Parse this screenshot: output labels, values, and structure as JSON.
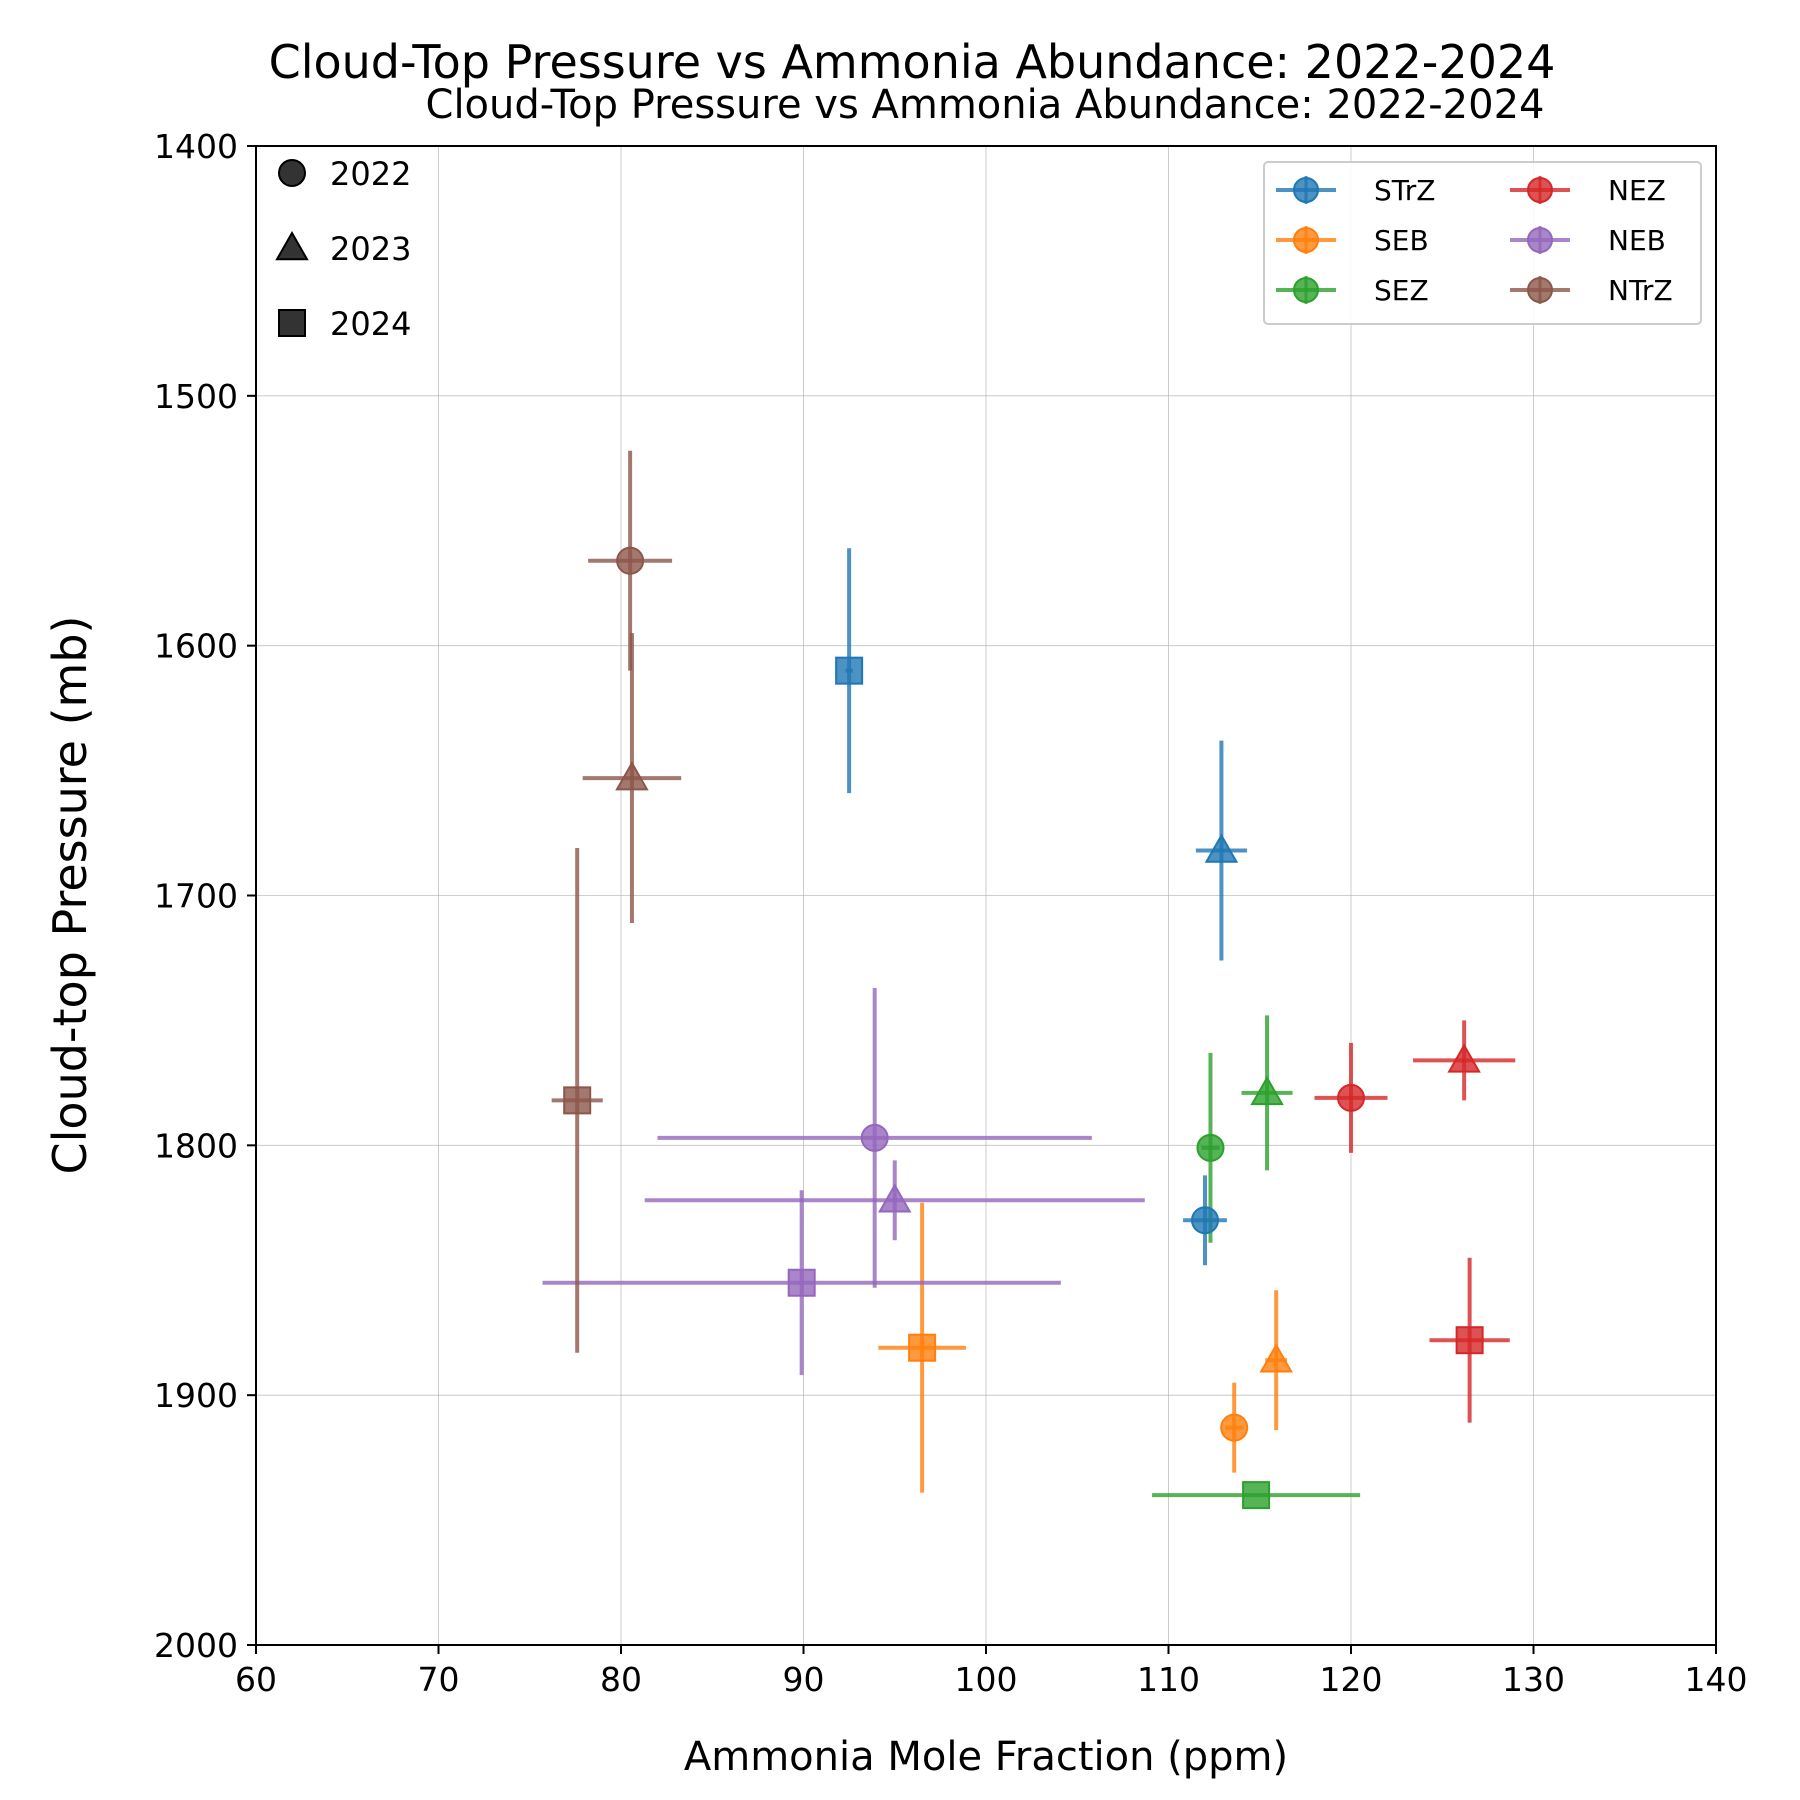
{
  "chart_data": {
    "type": "scatter",
    "title": "Cloud-Top Pressure vs Ammonia Abundance: 2022-2024",
    "subtitle": "Cloud-Top Pressure vs Ammonia Abundance: 2022-2024",
    "xlabel": "Ammonia Mole Fraction (ppm)",
    "ylabel": "Cloud-top Pressure (mb)",
    "xlim": [
      60,
      140
    ],
    "ylim": [
      2000,
      1400
    ],
    "y_inverted": true,
    "grid": true,
    "xticks": [
      "60",
      "70",
      "80",
      "90",
      "100",
      "110",
      "120",
      "130",
      "140"
    ],
    "yticks": [
      "1400",
      "1500",
      "1600",
      "1700",
      "1800",
      "1900",
      "2000"
    ],
    "marker_legend": {
      "placement": "top-left",
      "entries": [
        {
          "label": "2022",
          "marker": "circle"
        },
        {
          "label": "2023",
          "marker": "triangle"
        },
        {
          "label": "2024",
          "marker": "square"
        }
      ]
    },
    "series_legend_placement": "top-right",
    "series": [
      {
        "name": "STrZ",
        "color": "#1f77b4",
        "points": [
          {
            "year": "2022",
            "x": 112.0,
            "y": 1830,
            "xerr": 1.2,
            "yerr": 18
          },
          {
            "year": "2023",
            "x": 112.9,
            "y": 1682,
            "xerr": 1.4,
            "yerr": 44
          },
          {
            "year": "2024",
            "x": 92.5,
            "y": 1610,
            "xerr": 0.2,
            "yerr": 49
          }
        ]
      },
      {
        "name": "SEB",
        "color": "#ff7f0e",
        "points": [
          {
            "year": "2022",
            "x": 113.6,
            "y": 1913,
            "xerr": 0.5,
            "yerr": 18
          },
          {
            "year": "2023",
            "x": 115.9,
            "y": 1886,
            "xerr": 0.6,
            "yerr": 28
          },
          {
            "year": "2024",
            "x": 96.5,
            "y": 1881,
            "xerr": 2.4,
            "yerr": 58
          }
        ]
      },
      {
        "name": "SEZ",
        "color": "#2ca02c",
        "points": [
          {
            "year": "2022",
            "x": 112.3,
            "y": 1801,
            "xerr": 0.5,
            "yerr": 38
          },
          {
            "year": "2023",
            "x": 115.4,
            "y": 1779,
            "xerr": 1.4,
            "yerr": 31
          },
          {
            "year": "2024",
            "x": 114.8,
            "y": 1940,
            "xerr": 5.7,
            "yerr": 0
          }
        ]
      },
      {
        "name": "NEZ",
        "color": "#d62728",
        "points": [
          {
            "year": "2022",
            "x": 120.0,
            "y": 1781,
            "xerr": 2.0,
            "yerr": 22
          },
          {
            "year": "2023",
            "x": 126.2,
            "y": 1766,
            "xerr": 2.8,
            "yerr": 16
          },
          {
            "year": "2024",
            "x": 126.5,
            "y": 1878,
            "xerr": 2.2,
            "yerr": 33
          }
        ]
      },
      {
        "name": "NEB",
        "color": "#9467bd",
        "points": [
          {
            "year": "2022",
            "x": 93.9,
            "y": 1797,
            "xerr": 11.9,
            "yerr": 60
          },
          {
            "year": "2023",
            "x": 95.0,
            "y": 1822,
            "xerr": 13.7,
            "yerr": 16
          },
          {
            "year": "2024",
            "x": 89.9,
            "y": 1855,
            "xerr": 14.2,
            "yerr": 37
          }
        ]
      },
      {
        "name": "NTrZ",
        "color": "#8c564b",
        "points": [
          {
            "year": "2022",
            "x": 80.5,
            "y": 1566,
            "xerr": 2.3,
            "yerr": 44
          },
          {
            "year": "2023",
            "x": 80.6,
            "y": 1653,
            "xerr": 2.7,
            "yerr": 58
          },
          {
            "year": "2024",
            "x": 77.6,
            "y": 1782,
            "xerr": 1.4,
            "yerr": 101
          }
        ]
      }
    ]
  }
}
